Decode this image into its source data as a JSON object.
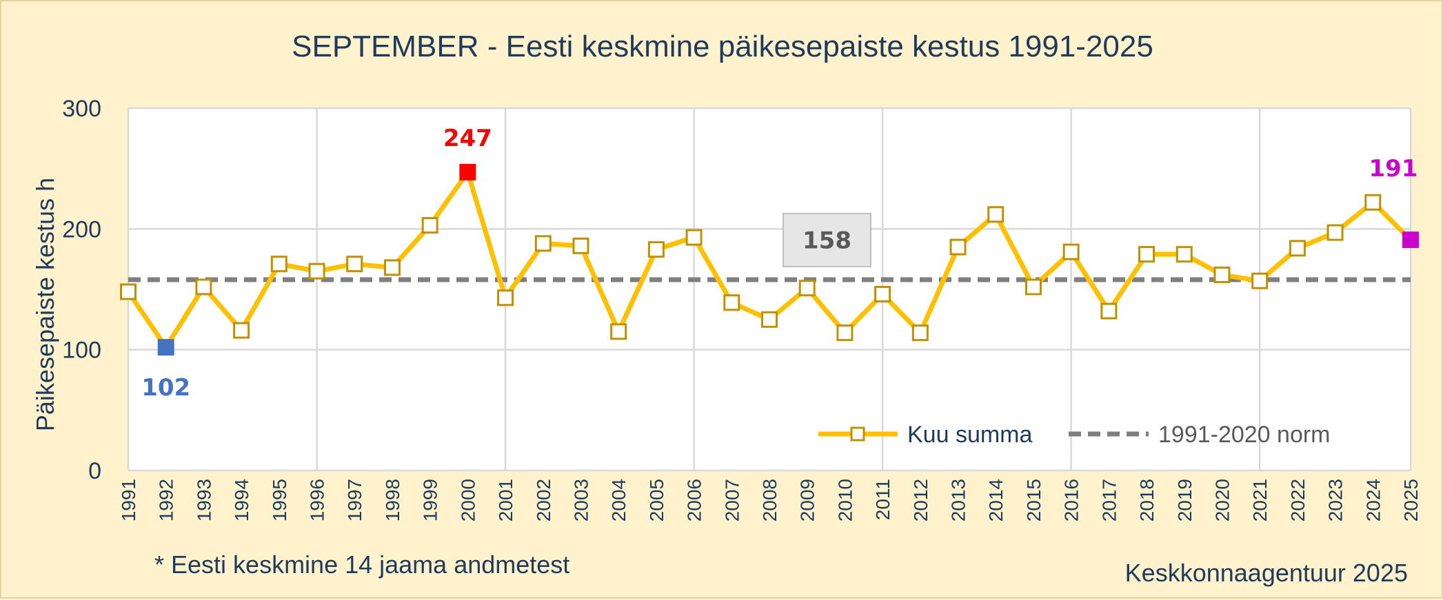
{
  "title": "SEPTEMBER - Eesti keskmine päikesepaiste kestus 1991-2025",
  "footnote": "* Eesti keskmine 14 jaama andmetest",
  "source": "Keskkonnaagentuur 2025",
  "colors": {
    "line": "#ffc000",
    "norm": "#7f7f7f",
    "min": "#4472c4",
    "max": "#ff0000",
    "latest": "#cc00cc",
    "marker_border": "#bf9000",
    "grid": "#d9d9d9",
    "text": "#1f3b5c"
  },
  "chart_data": {
    "type": "line",
    "title": "SEPTEMBER - Eesti keskmine päikesepaiste kestus 1991-2025",
    "xlabel": "",
    "ylabel": "Päikesepaiste kestus h",
    "ylim": [
      0,
      300
    ],
    "yticks": [
      0,
      100,
      200,
      300
    ],
    "grid": true,
    "legend_position": "bottom-right",
    "x": [
      1991,
      1992,
      1993,
      1994,
      1995,
      1996,
      1997,
      1998,
      1999,
      2000,
      2001,
      2002,
      2003,
      2004,
      2005,
      2006,
      2007,
      2008,
      2009,
      2010,
      2011,
      2012,
      2013,
      2014,
      2015,
      2016,
      2017,
      2018,
      2019,
      2020,
      2021,
      2022,
      2023,
      2024,
      2025
    ],
    "series": [
      {
        "name": "Kuu summa",
        "values": [
          148,
          102,
          152,
          116,
          171,
          165,
          171,
          168,
          203,
          247,
          143,
          188,
          186,
          115,
          183,
          193,
          139,
          125,
          151,
          114,
          146,
          114,
          185,
          212,
          152,
          181,
          132,
          179,
          179,
          162,
          157,
          184,
          197,
          222,
          191
        ]
      },
      {
        "name": "1991-2020 norm",
        "constant": 158
      }
    ],
    "annotations": [
      {
        "x": 1992,
        "label": "102",
        "kind": "min"
      },
      {
        "x": 2000,
        "label": "247",
        "kind": "max"
      },
      {
        "x": 2025,
        "label": "191",
        "kind": "latest"
      },
      {
        "label": "158",
        "kind": "norm-box"
      }
    ]
  }
}
